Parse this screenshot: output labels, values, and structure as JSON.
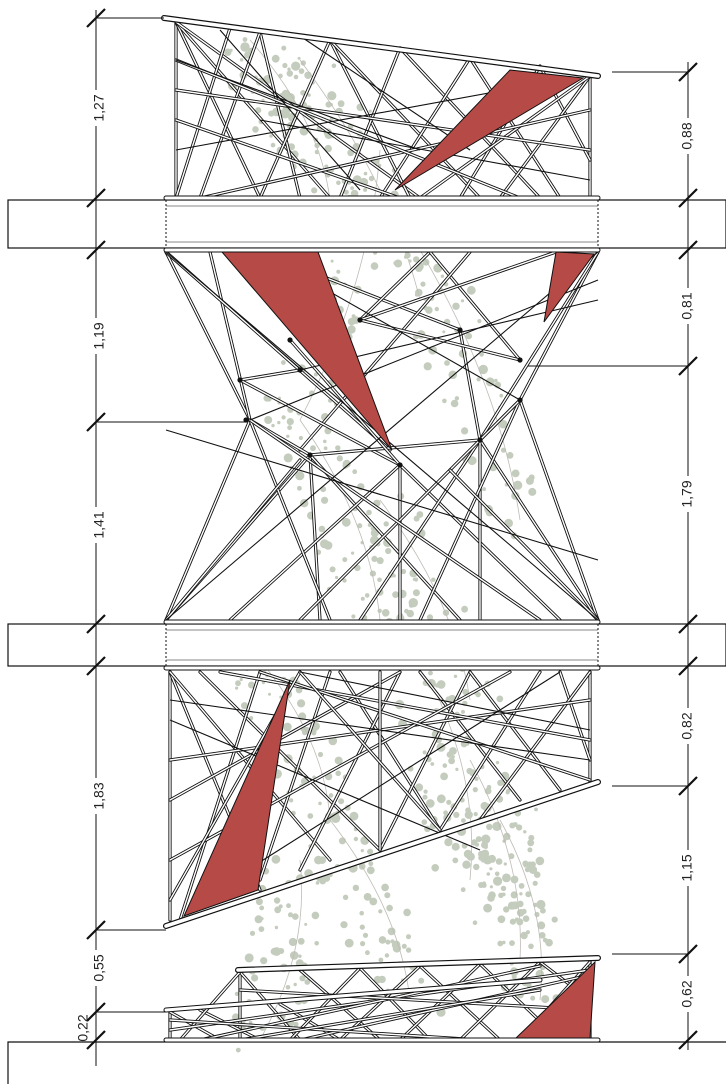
{
  "dimensions": {
    "left": [
      {
        "id": "l1",
        "label": "1,27"
      },
      {
        "id": "l2",
        "label": "1,19"
      },
      {
        "id": "l3",
        "label": "1,41"
      },
      {
        "id": "l4",
        "label": "1,83"
      },
      {
        "id": "l5",
        "label": "0,55"
      },
      {
        "id": "l6",
        "label": "0,22"
      }
    ],
    "right": [
      {
        "id": "r1",
        "label": "0,88"
      },
      {
        "id": "r2",
        "label": "0,81"
      },
      {
        "id": "r3",
        "label": "1,79"
      },
      {
        "id": "r4",
        "label": "0,82"
      },
      {
        "id": "r5",
        "label": "1,15"
      },
      {
        "id": "r6",
        "label": "0,62"
      }
    ]
  },
  "colors": {
    "panel_red": "#b64a47",
    "vegetation": "#7d8f6e",
    "line": "#111111"
  }
}
